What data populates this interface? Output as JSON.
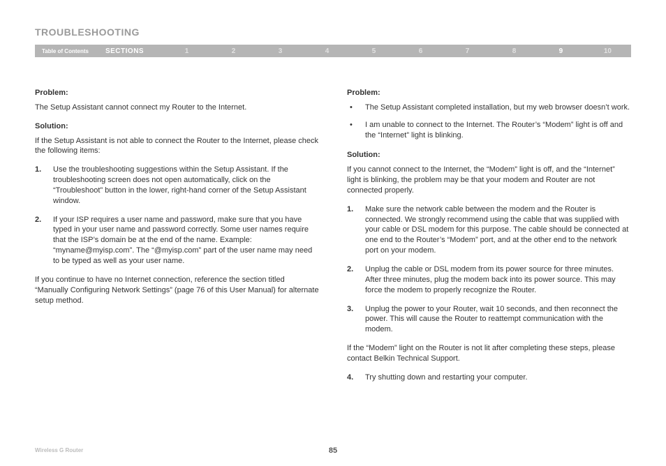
{
  "page": {
    "title": "TROUBLESHOOTING",
    "footer_product": "Wireless G Router",
    "page_number": "85"
  },
  "nav": {
    "toc_label": "Table of Contents",
    "sections_label": "SECTIONS",
    "items": [
      {
        "label": "1",
        "active": false
      },
      {
        "label": "2",
        "active": false
      },
      {
        "label": "3",
        "active": false
      },
      {
        "label": "4",
        "active": false
      },
      {
        "label": "5",
        "active": false
      },
      {
        "label": "6",
        "active": false
      },
      {
        "label": "7",
        "active": false
      },
      {
        "label": "8",
        "active": false
      },
      {
        "label": "9",
        "active": true
      },
      {
        "label": "10",
        "active": false
      }
    ]
  },
  "left": {
    "problem_label": "Problem:",
    "problem_text": "The Setup Assistant cannot connect my Router to the Internet.",
    "solution_label": "Solution:",
    "solution_intro": "If the Setup Assistant is not able to connect the Router to the Internet, please check the following items:",
    "steps": [
      {
        "n": "1.",
        "t": "Use the troubleshooting suggestions within the Setup Assistant. If the troubleshooting screen does not open automatically, click on the “Troubleshoot” button in the lower, right-hand corner of the Setup Assistant window."
      },
      {
        "n": "2.",
        "t": "If your ISP requires a user name and password, make sure that you have typed in your user name and password correctly. Some user names require that the ISP’s domain be at the end of the name. Example: “myname@myisp.com”. The “@myisp.com” part of the user name may need to be typed as well as your user name."
      }
    ],
    "closing": "If you continue to have no Internet connection, reference the section titled “Manually Configuring Network Settings” (page 76 of this User Manual) for alternate setup method."
  },
  "right": {
    "problem_label": "Problem:",
    "problem_bullets": [
      "The Setup Assistant completed installation, but my web browser doesn’t work.",
      "I am unable to connect to the Internet. The Router’s “Modem” light is off and the “Internet” light is blinking."
    ],
    "solution_label": "Solution:",
    "solution_intro": "If you cannot connect to the Internet, the “Modem” light is off, and the “Internet” light is blinking, the problem may be that your modem and Router are not connected properly.",
    "steps": [
      {
        "n": "1.",
        "t": "Make sure the network cable between the modem and the Router is connected. We strongly recommend using the cable that was supplied with your cable or DSL modem for this purpose. The cable should be connected at one end to the Router’s “Modem” port, and at the other end to the network port on your modem."
      },
      {
        "n": "2.",
        "t": "Unplug the cable or DSL modem from its power source for three minutes. After three minutes, plug the modem back into its power source. This may force the modem to properly recognize the Router."
      },
      {
        "n": "3.",
        "t": "Unplug the power to your Router, wait 10 seconds, and then reconnect the power. This will cause the Router to reattempt communication with the modem."
      }
    ],
    "closing": "If the “Modem” light on the Router is not lit after completing these steps, please contact Belkin Technical Support.",
    "steps_after": [
      {
        "n": "4.",
        "t": "Try shutting down and restarting your computer."
      }
    ]
  }
}
